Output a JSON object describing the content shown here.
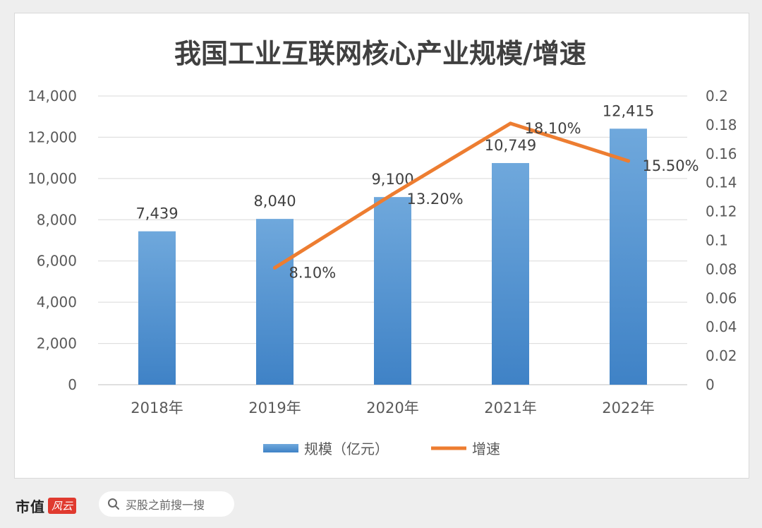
{
  "chart_data": {
    "type": "bar+line",
    "title": "我国工业互联网核心产业规模/增速",
    "categories": [
      "2018年",
      "2019年",
      "2020年",
      "2021年",
      "2022年"
    ],
    "bar_series": {
      "name": "规模（亿元）",
      "values": [
        7439,
        8040,
        9100,
        10749,
        12415
      ],
      "labels": [
        "7,439",
        "8,040",
        "9,100",
        "10,749",
        "12,415"
      ],
      "color": "#5b9bd5"
    },
    "line_series": {
      "name": "增速",
      "values": [
        null,
        0.081,
        0.132,
        0.181,
        0.155
      ],
      "labels": [
        "",
        "8.10%",
        "13.20%",
        "18.10%",
        "15.50%"
      ],
      "color": "#ed7d31"
    },
    "y_left": {
      "ylim": [
        0,
        14000
      ],
      "ticks": [
        0,
        2000,
        4000,
        6000,
        8000,
        10000,
        12000,
        14000
      ],
      "tick_labels": [
        "0",
        "2,000",
        "4,000",
        "6,000",
        "8,000",
        "10,000",
        "12,000",
        "14,000"
      ]
    },
    "y_right": {
      "ylim": [
        0,
        0.2
      ],
      "ticks": [
        0,
        0.02,
        0.04,
        0.06,
        0.08,
        0.1,
        0.12,
        0.14,
        0.16,
        0.18,
        0.2
      ],
      "tick_labels": [
        "0",
        "0.02",
        "0.04",
        "0.06",
        "0.08",
        "0.1",
        "0.12",
        "0.14",
        "0.16",
        "0.18",
        "0.2"
      ]
    },
    "grid": true,
    "legend_position": "bottom"
  },
  "footer": {
    "brand": "市值",
    "brand_logo": "风云",
    "search_placeholder": "买股之前搜一搜",
    "search_icon": "search-icon"
  },
  "watermark": "市值风云"
}
